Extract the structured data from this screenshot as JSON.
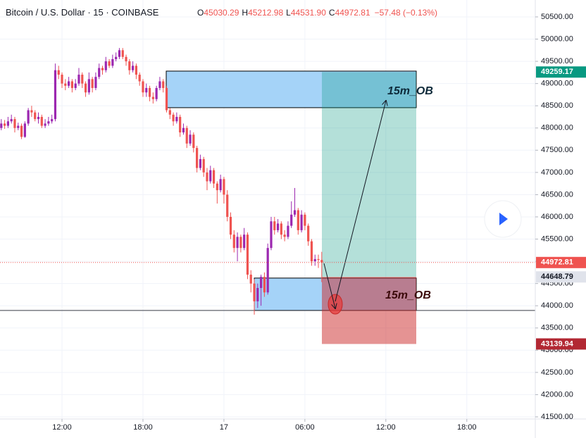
{
  "chart_data": {
    "type": "candlestick",
    "header": {
      "symbol": "Bitcoin / U.S. Dollar",
      "interval": "15",
      "exchange": "COINBASE",
      "fields": [
        {
          "key": "O",
          "value": "45030.29"
        },
        {
          "key": "H",
          "value": "45212.98"
        },
        {
          "key": "L",
          "value": "44531.90"
        },
        {
          "key": "C",
          "value": "44972.81"
        }
      ],
      "change": "−57.48 (−0.13%)"
    },
    "up_color": "#9c27b0",
    "down_color": "#ef5350",
    "open": [
      48000,
      48100,
      48050,
      48150,
      48200,
      48000,
      48050,
      47800,
      48100,
      48400,
      48350,
      48200,
      48250,
      48050,
      48100,
      48150,
      48200,
      49300,
      49200,
      49000,
      48950,
      49050,
      48900,
      49000,
      49200,
      49000,
      48800,
      49100,
      48900,
      49150,
      49350,
      49300,
      49500,
      49400,
      49550,
      49600,
      49750,
      49600,
      49500,
      49300,
      49400,
      49200,
      49050,
      48800,
      48900,
      48700,
      48650,
      48900,
      49050,
      48900,
      48400,
      48300,
      48150,
      48250,
      47900,
      48000,
      47650,
      47850,
      47550,
      47100,
      47300,
      47000,
      46800,
      47050,
      46750,
      46600,
      46850,
      46500,
      46000,
      45600,
      45300,
      45550,
      45300,
      45600,
      44700,
      44500,
      44100,
      44400,
      44650,
      44300,
      45300,
      45900,
      45700,
      45850,
      45600,
      45550,
      45800,
      46050,
      46150,
      45700,
      46050,
      45800,
      45450,
      45000,
      45050,
      45030.29
    ],
    "high": [
      48200,
      48180,
      48250,
      48300,
      48250,
      48120,
      48100,
      48150,
      48450,
      48500,
      48400,
      48350,
      48300,
      48200,
      48250,
      48300,
      49450,
      49400,
      49250,
      49100,
      49150,
      49100,
      49100,
      49350,
      49250,
      49050,
      49250,
      49150,
      49250,
      49450,
      49400,
      49600,
      49550,
      49650,
      49700,
      49800,
      49800,
      49650,
      49550,
      49500,
      49450,
      49250,
      49100,
      49000,
      48950,
      48800,
      48950,
      49150,
      49100,
      48950,
      48450,
      48350,
      48350,
      48300,
      48100,
      48050,
      47950,
      47900,
      47600,
      47400,
      47350,
      47100,
      47150,
      47100,
      46800,
      46950,
      46900,
      46600,
      46100,
      45700,
      45650,
      45600,
      45750,
      45650,
      44800,
      44600,
      44500,
      44700,
      44750,
      45400,
      46000,
      46000,
      45950,
      45900,
      45700,
      45900,
      46350,
      46650,
      46200,
      46150,
      46100,
      45850,
      45500,
      45150,
      45150,
      45212.98
    ],
    "low": [
      47950,
      47980,
      48000,
      48100,
      47900,
      47950,
      47750,
      47780,
      48050,
      48250,
      48150,
      48100,
      48000,
      48000,
      48050,
      48100,
      48150,
      49100,
      48900,
      48850,
      48900,
      48800,
      48850,
      48950,
      48900,
      48700,
      48750,
      48800,
      48850,
      49100,
      49200,
      49250,
      49350,
      49350,
      49500,
      49550,
      49550,
      49400,
      49200,
      49250,
      49100,
      48950,
      48700,
      48700,
      48600,
      48550,
      48600,
      48850,
      48800,
      48350,
      48200,
      48050,
      48100,
      47800,
      47850,
      47550,
      47600,
      47450,
      47000,
      47050,
      46900,
      46600,
      46750,
      46650,
      46300,
      46550,
      46300,
      45900,
      45500,
      45200,
      45000,
      45200,
      45250,
      44600,
      44300,
      43800,
      43950,
      44000,
      44200,
      44250,
      45250,
      45600,
      45650,
      45500,
      45450,
      45500,
      45750,
      46000,
      45600,
      45650,
      45700,
      45350,
      44900,
      44900,
      44850,
      44531.9
    ],
    "close": [
      48100,
      48050,
      48150,
      48200,
      48000,
      48050,
      47800,
      48100,
      48400,
      48350,
      48200,
      48250,
      48050,
      48100,
      48150,
      48200,
      49300,
      49200,
      49000,
      48950,
      49050,
      48900,
      49000,
      49200,
      49000,
      48800,
      49100,
      48900,
      49150,
      49350,
      49300,
      49500,
      49400,
      49550,
      49600,
      49750,
      49600,
      49500,
      49300,
      49400,
      49200,
      49050,
      48800,
      48900,
      48700,
      48650,
      48900,
      49050,
      48900,
      48400,
      48300,
      48150,
      48250,
      47900,
      48000,
      47650,
      47850,
      47550,
      47100,
      47300,
      47000,
      46800,
      47050,
      46750,
      46600,
      46850,
      46500,
      46000,
      45600,
      45300,
      45550,
      45300,
      45600,
      44700,
      44500,
      44100,
      44400,
      44650,
      44300,
      45300,
      45900,
      45700,
      45850,
      45600,
      45550,
      45800,
      46050,
      46150,
      45700,
      46050,
      45800,
      45450,
      45000,
      45050,
      45030.29,
      44972.81
    ],
    "xlim": [
      -0.38,
      158.3
    ],
    "xticks": [
      {
        "value": 18,
        "label": "12:00"
      },
      {
        "value": 42,
        "label": "18:00"
      },
      {
        "value": 66,
        "label": "17"
      },
      {
        "value": 90,
        "label": "06:00"
      },
      {
        "value": 114,
        "label": "12:00"
      },
      {
        "value": 138,
        "label": "18:00"
      }
    ],
    "ylim": [
      41452,
      50880
    ],
    "yticks": [
      {
        "value": 41500,
        "label": "41500.00"
      },
      {
        "value": 42000,
        "label": "42000.00"
      },
      {
        "value": 42500,
        "label": "42500.00"
      },
      {
        "value": 43000,
        "label": "43000.00"
      },
      {
        "value": 43500,
        "label": "43500.00"
      },
      {
        "value": 44000,
        "label": "44000.00"
      },
      {
        "value": 44500,
        "label": "44500.00"
      },
      {
        "value": 45000,
        "label": "45000.00"
      },
      {
        "value": 45500,
        "label": "45500.00"
      },
      {
        "value": 46000,
        "label": "46000.00"
      },
      {
        "value": 46500,
        "label": "46500.00"
      },
      {
        "value": 47000,
        "label": "47000.00"
      },
      {
        "value": 47500,
        "label": "47500.00"
      },
      {
        "value": 48000,
        "label": "48000.00"
      },
      {
        "value": 48500,
        "label": "48500.00"
      },
      {
        "value": 49000,
        "label": "49000.00"
      },
      {
        "value": 49500,
        "label": "49500.00"
      },
      {
        "value": 50000,
        "label": "50000.00"
      },
      {
        "value": 50500,
        "label": "50500.00"
      }
    ],
    "grid": true,
    "order_blocks": [
      {
        "label": "15m_OB",
        "top": 49280,
        "bottom": 48457
      },
      {
        "label": "15m_OB",
        "top": 44623,
        "bottom": 43895
      }
    ],
    "hline": 43895,
    "position": {
      "entry": 44648.79,
      "target": 49259.17,
      "stop": 43139.94
    },
    "price_labels": [
      {
        "value": 49259.17,
        "color": "#089981",
        "text_color": "#ffffff"
      },
      {
        "value": 44972.81,
        "color": "#ef5350",
        "text_color": "#ffffff"
      },
      {
        "value": 44648.79,
        "color": "#e0e3eb",
        "text_color": "#131722"
      },
      {
        "value": 43139.94,
        "color": "#b22833",
        "text_color": "#ffffff"
      }
    ]
  }
}
